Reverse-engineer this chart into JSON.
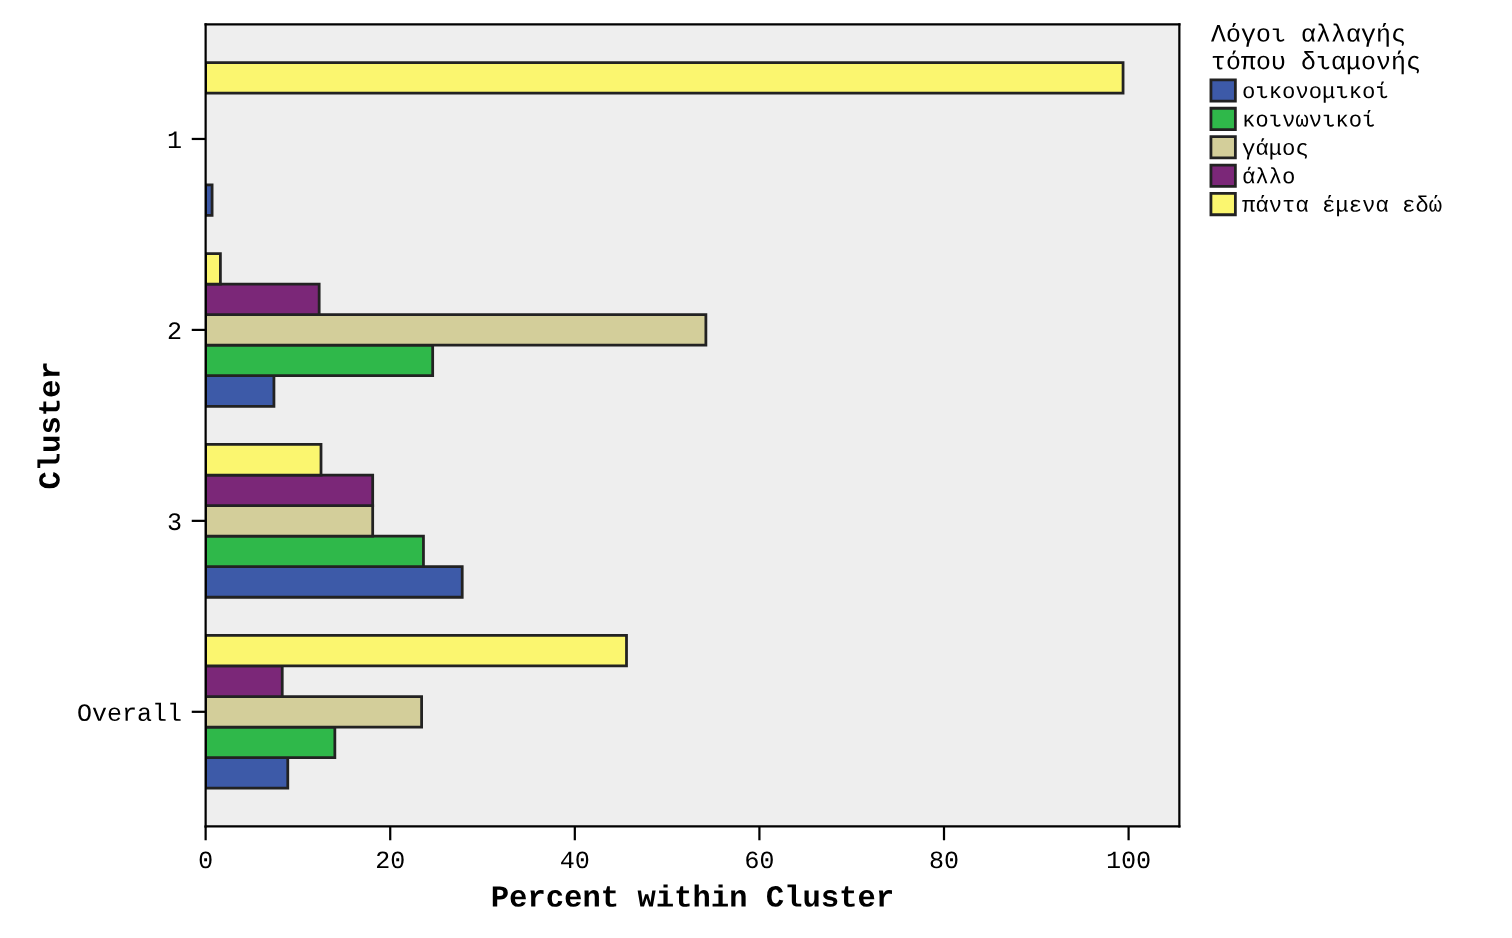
{
  "chart_data": {
    "type": "bar",
    "orientation": "horizontal",
    "xlabel": "Percent within Cluster",
    "ylabel": "Cluster",
    "legend_title": "Λόγοι αλλαγής\nτόπου διαμονής",
    "legend": "top right",
    "categories": [
      "1",
      "2",
      "3",
      "Overall"
    ],
    "series": [
      {
        "name": "οικονομικοί",
        "color": "#3d5aa8",
        "values": [
          0.7,
          7.4,
          27.8,
          8.9
        ]
      },
      {
        "name": "κοινωνικοί",
        "color": "#2fb84a",
        "values": [
          0,
          24.6,
          23.6,
          14.0
        ]
      },
      {
        "name": "γάμος",
        "color": "#d3ce9a",
        "values": [
          0,
          54.2,
          18.1,
          23.4
        ]
      },
      {
        "name": "άλλο",
        "color": "#7b2778",
        "values": [
          0,
          12.3,
          18.1,
          8.3
        ]
      },
      {
        "name": "πάντα έμενα εδώ",
        "color": "#fbf66f",
        "values": [
          99.4,
          1.6,
          12.5,
          45.6
        ]
      }
    ],
    "xlim": [
      0,
      105.5
    ],
    "xticks": [
      0,
      20,
      40,
      60,
      80,
      100
    ],
    "grid": false
  }
}
